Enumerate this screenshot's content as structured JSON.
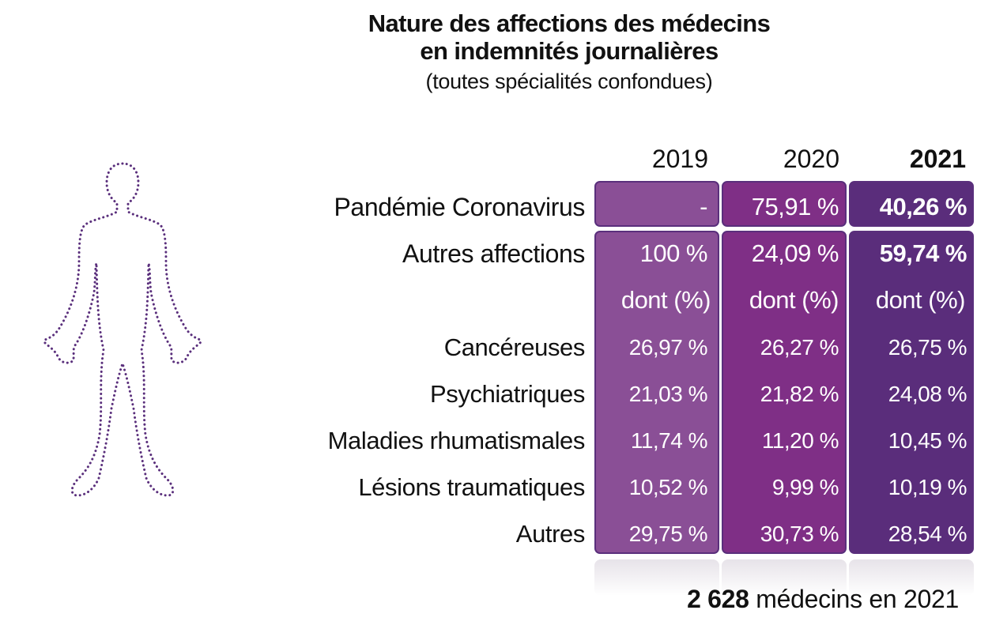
{
  "title": {
    "line1": "Nature des affections des médecins",
    "line2": "en indemnités journalières",
    "subtitle": "(toutes spécialités confondues)"
  },
  "icons": {
    "figure": "human-body-outline-icon"
  },
  "colors": {
    "col_2019": "#8a4f96",
    "col_2020": "#7f2f86",
    "col_2021": "#5a2d7b",
    "outline": "#5a2f7c"
  },
  "chart_data": {
    "type": "table",
    "columns": [
      "2019",
      "2020",
      "2021"
    ],
    "rows": [
      {
        "label": "Pandémie Coronavirus",
        "values": [
          "-",
          "75,91 %",
          "40,26 %"
        ]
      },
      {
        "label": "Autres affections",
        "values": [
          "100 %",
          "24,09 %",
          "59,74 %"
        ]
      },
      {
        "label": "",
        "values": [
          "dont (%)",
          "dont (%)",
          "dont (%)"
        ]
      },
      {
        "label": "Cancéreuses",
        "values": [
          "26,97 %",
          "26,27 %",
          "26,75 %"
        ]
      },
      {
        "label": "Psychiatriques",
        "values": [
          "21,03 %",
          "21,82 %",
          "24,08 %"
        ]
      },
      {
        "label": "Maladies rhumatismales",
        "values": [
          "11,74 %",
          "11,20 %",
          "10,45 %"
        ]
      },
      {
        "label": "Lésions traumatiques",
        "values": [
          "10,52 %",
          "9,99 %",
          "10,19 %"
        ]
      },
      {
        "label": "Autres",
        "values": [
          "29,75 %",
          "30,73 %",
          "28,54 %"
        ]
      }
    ]
  },
  "footer": {
    "count": "2 628",
    "text": "médecins en 2021"
  }
}
